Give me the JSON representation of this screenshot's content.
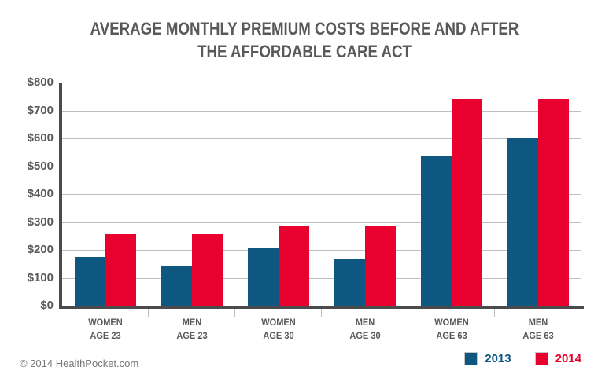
{
  "title": {
    "line1": "AVERAGE MONTHLY PREMIUM COSTS BEFORE AND AFTER",
    "line2": "THE AFFORDABLE CARE ACT"
  },
  "footer": {
    "copyright": "© 2014 HealthPocket.com"
  },
  "colors": {
    "series_2013": "#0D5780",
    "series_2014": "#E8002F",
    "title_text": "#58595B",
    "axis": "#4B4B4D",
    "gridline": "#BDBFC1",
    "footer_text": "#77787B",
    "background": "#FFFFFF"
  },
  "chart_data": {
    "type": "bar",
    "title": "AVERAGE MONTHLY PREMIUM COSTS BEFORE AND AFTER THE AFFORDABLE CARE ACT",
    "categories": [
      [
        "WOMEN",
        "AGE 23"
      ],
      [
        "MEN",
        "AGE 23"
      ],
      [
        "WOMEN",
        "AGE 30"
      ],
      [
        "MEN",
        "AGE 30"
      ],
      [
        "WOMEN",
        "AGE 63"
      ],
      [
        "MEN",
        "AGE 63"
      ]
    ],
    "series": [
      {
        "name": "2013",
        "color": "#0D5780",
        "values": [
          175,
          140,
          210,
          165,
          538,
          602
        ]
      },
      {
        "name": "2014",
        "color": "#E8002F",
        "values": [
          257,
          257,
          285,
          288,
          740,
          740
        ]
      }
    ],
    "xlabel": "",
    "ylabel": "",
    "ylim": [
      0,
      800
    ],
    "ytick_interval": 100,
    "ytick_labels": [
      "$0",
      "$100",
      "$200",
      "$300",
      "$400",
      "$500",
      "$600",
      "$700",
      "$800"
    ],
    "grid": true,
    "legend_position": "bottom-right"
  }
}
